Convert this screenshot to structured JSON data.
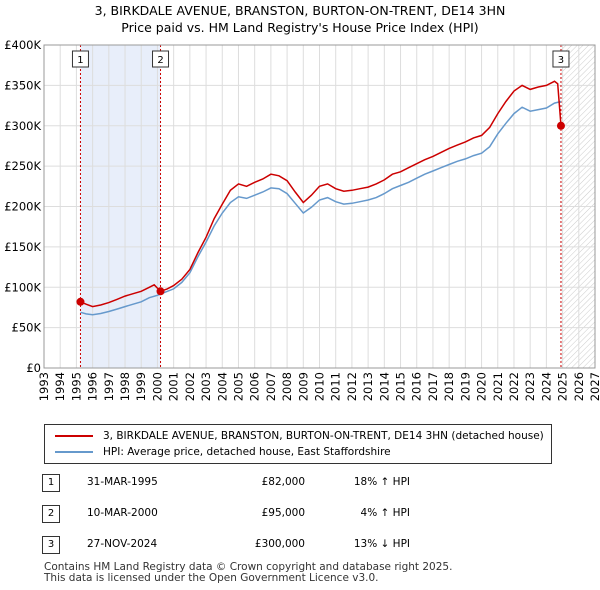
{
  "chart_data": {
    "type": "line",
    "title": "3, BIRKDALE AVENUE, BRANSTON, BURTON-ON-TRENT, DE14 3HN",
    "subtitle": "Price paid vs. HM Land Registry's House Price Index (HPI)",
    "ylim": [
      0,
      400000
    ],
    "xlim": [
      1993,
      2027
    ],
    "y_ticks": [
      0,
      50000,
      100000,
      150000,
      200000,
      250000,
      300000,
      350000,
      400000
    ],
    "y_tick_labels": [
      "£0",
      "£50K",
      "£100K",
      "£150K",
      "£200K",
      "£250K",
      "£300K",
      "£350K",
      "£400K"
    ],
    "x_ticks": [
      "1993",
      "1994",
      "1995",
      "1996",
      "1997",
      "1998",
      "1999",
      "2000",
      "2001",
      "2002",
      "2003",
      "2004",
      "2005",
      "2006",
      "2007",
      "2008",
      "2009",
      "2010",
      "2011",
      "2012",
      "2013",
      "2014",
      "2015",
      "2016",
      "2017",
      "2018",
      "2019",
      "2020",
      "2021",
      "2022",
      "2023",
      "2024",
      "2025",
      "2026",
      "2027"
    ],
    "shaded_spans": [
      [
        1995.25,
        2000.19
      ]
    ],
    "future_hatch_from": 2024.92,
    "series": [
      {
        "name": "3, BIRKDALE AVENUE, BRANSTON, BURTON-ON-TRENT, DE14 3HN (detached house)",
        "color": "#cc0000",
        "points": [
          [
            1995.25,
            82000
          ],
          [
            1995.6,
            79000
          ],
          [
            1996.0,
            76000
          ],
          [
            1996.5,
            78000
          ],
          [
            1997.0,
            81000
          ],
          [
            1997.5,
            85000
          ],
          [
            1998.0,
            89000
          ],
          [
            1998.5,
            92000
          ],
          [
            1999.0,
            95000
          ],
          [
            1999.5,
            100000
          ],
          [
            1999.8,
            103000
          ],
          [
            2000.19,
            95000
          ],
          [
            2000.6,
            98000
          ],
          [
            2001.0,
            102000
          ],
          [
            2001.5,
            110000
          ],
          [
            2002.0,
            122000
          ],
          [
            2002.5,
            143000
          ],
          [
            2003.0,
            162000
          ],
          [
            2003.5,
            185000
          ],
          [
            2004.0,
            203000
          ],
          [
            2004.5,
            220000
          ],
          [
            2005.0,
            228000
          ],
          [
            2005.5,
            225000
          ],
          [
            2006.0,
            230000
          ],
          [
            2006.5,
            234000
          ],
          [
            2007.0,
            240000
          ],
          [
            2007.5,
            238000
          ],
          [
            2008.0,
            232000
          ],
          [
            2008.5,
            218000
          ],
          [
            2009.0,
            205000
          ],
          [
            2009.5,
            214000
          ],
          [
            2010.0,
            225000
          ],
          [
            2010.5,
            228000
          ],
          [
            2011.0,
            222000
          ],
          [
            2011.5,
            219000
          ],
          [
            2012.0,
            220000
          ],
          [
            2012.5,
            222000
          ],
          [
            2013.0,
            224000
          ],
          [
            2013.5,
            228000
          ],
          [
            2014.0,
            233000
          ],
          [
            2014.5,
            240000
          ],
          [
            2015.0,
            243000
          ],
          [
            2015.5,
            248000
          ],
          [
            2016.0,
            253000
          ],
          [
            2016.5,
            258000
          ],
          [
            2017.0,
            262000
          ],
          [
            2017.5,
            267000
          ],
          [
            2018.0,
            272000
          ],
          [
            2018.5,
            276000
          ],
          [
            2019.0,
            280000
          ],
          [
            2019.5,
            285000
          ],
          [
            2020.0,
            288000
          ],
          [
            2020.5,
            298000
          ],
          [
            2021.0,
            315000
          ],
          [
            2021.5,
            330000
          ],
          [
            2022.0,
            343000
          ],
          [
            2022.5,
            350000
          ],
          [
            2023.0,
            345000
          ],
          [
            2023.5,
            348000
          ],
          [
            2024.0,
            350000
          ],
          [
            2024.5,
            355000
          ],
          [
            2024.7,
            352000
          ],
          [
            2024.9,
            300000
          ]
        ]
      },
      {
        "name": "HPI: Average price, detached house, East Staffordshire",
        "color": "#6699cc",
        "points": [
          [
            1995.25,
            69000
          ],
          [
            1995.6,
            67000
          ],
          [
            1996.0,
            66000
          ],
          [
            1996.5,
            67500
          ],
          [
            1997.0,
            70000
          ],
          [
            1997.5,
            73000
          ],
          [
            1998.0,
            76000
          ],
          [
            1998.5,
            79000
          ],
          [
            1999.0,
            82000
          ],
          [
            1999.5,
            87000
          ],
          [
            2000.0,
            90000
          ],
          [
            2000.5,
            94000
          ],
          [
            2001.0,
            98000
          ],
          [
            2001.5,
            106000
          ],
          [
            2002.0,
            118000
          ],
          [
            2002.5,
            138000
          ],
          [
            2003.0,
            156000
          ],
          [
            2003.5,
            176000
          ],
          [
            2004.0,
            192000
          ],
          [
            2004.5,
            205000
          ],
          [
            2005.0,
            212000
          ],
          [
            2005.5,
            210000
          ],
          [
            2006.0,
            214000
          ],
          [
            2006.5,
            218000
          ],
          [
            2007.0,
            223000
          ],
          [
            2007.5,
            222000
          ],
          [
            2008.0,
            216000
          ],
          [
            2008.5,
            204000
          ],
          [
            2009.0,
            192000
          ],
          [
            2009.5,
            199000
          ],
          [
            2010.0,
            208000
          ],
          [
            2010.5,
            211000
          ],
          [
            2011.0,
            206000
          ],
          [
            2011.5,
            203000
          ],
          [
            2012.0,
            204000
          ],
          [
            2012.5,
            206000
          ],
          [
            2013.0,
            208000
          ],
          [
            2013.5,
            211000
          ],
          [
            2014.0,
            216000
          ],
          [
            2014.5,
            222000
          ],
          [
            2015.0,
            226000
          ],
          [
            2015.5,
            230000
          ],
          [
            2016.0,
            235000
          ],
          [
            2016.5,
            240000
          ],
          [
            2017.0,
            244000
          ],
          [
            2017.5,
            248000
          ],
          [
            2018.0,
            252000
          ],
          [
            2018.5,
            256000
          ],
          [
            2019.0,
            259000
          ],
          [
            2019.5,
            263000
          ],
          [
            2020.0,
            266000
          ],
          [
            2020.5,
            274000
          ],
          [
            2021.0,
            290000
          ],
          [
            2021.5,
            303000
          ],
          [
            2022.0,
            315000
          ],
          [
            2022.5,
            323000
          ],
          [
            2023.0,
            318000
          ],
          [
            2023.5,
            320000
          ],
          [
            2024.0,
            322000
          ],
          [
            2024.5,
            328000
          ],
          [
            2024.9,
            330000
          ]
        ]
      }
    ],
    "markers": [
      {
        "id": "1",
        "x": 1995.25,
        "y": 82000
      },
      {
        "id": "2",
        "x": 2000.19,
        "y": 95000
      },
      {
        "id": "3",
        "x": 2024.9,
        "y": 300000
      }
    ]
  },
  "legend": {
    "red_label": "3, BIRKDALE AVENUE, BRANSTON, BURTON-ON-TRENT, DE14 3HN (detached house)",
    "blue_label": "HPI: Average price, detached house, East Staffordshire",
    "red_color": "#cc0000",
    "blue_color": "#6699cc"
  },
  "transactions": [
    {
      "num": "1",
      "date": "31-MAR-1995",
      "price": "£82,000",
      "hpi": "18% ↑ HPI"
    },
    {
      "num": "2",
      "date": "10-MAR-2000",
      "price": "£95,000",
      "hpi": "4% ↑ HPI"
    },
    {
      "num": "3",
      "date": "27-NOV-2024",
      "price": "£300,000",
      "hpi": "13% ↓ HPI"
    }
  ],
  "footer": {
    "line1": "Contains HM Land Registry data © Crown copyright and database right 2025.",
    "line2": "This data is licensed under the Open Government Licence v3.0."
  }
}
